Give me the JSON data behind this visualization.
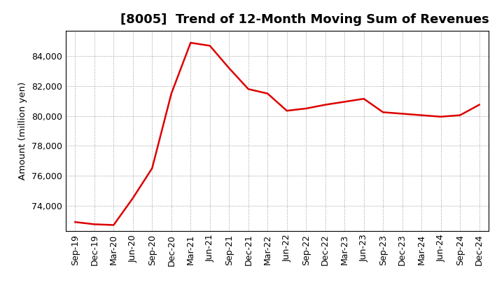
{
  "title": "[8005]  Trend of 12-Month Moving Sum of Revenues",
  "ylabel": "Amount (million yen)",
  "line_color": "#dd0000",
  "background_color": "#ffffff",
  "plot_bg_color": "#ffffff",
  "grid_color": "#999999",
  "x_labels": [
    "Sep-19",
    "Dec-19",
    "Mar-20",
    "Jun-20",
    "Sep-20",
    "Dec-20",
    "Mar-21",
    "Jun-21",
    "Sep-21",
    "Dec-21",
    "Mar-22",
    "Jun-22",
    "Sep-22",
    "Dec-22",
    "Mar-23",
    "Jun-23",
    "Sep-23",
    "Dec-23",
    "Mar-24",
    "Jun-24",
    "Sep-24",
    "Dec-24"
  ],
  "values": [
    72900,
    72750,
    72700,
    74500,
    76500,
    81500,
    84900,
    84700,
    83200,
    81800,
    81500,
    80350,
    80500,
    80750,
    80950,
    81150,
    80250,
    80150,
    80050,
    79950,
    80050,
    80750
  ],
  "ylim_min": 72300,
  "ylim_max": 85700,
  "yticks": [
    74000,
    76000,
    78000,
    80000,
    82000,
    84000
  ],
  "title_fontsize": 13,
  "axis_fontsize": 9.5,
  "tick_fontsize": 9
}
